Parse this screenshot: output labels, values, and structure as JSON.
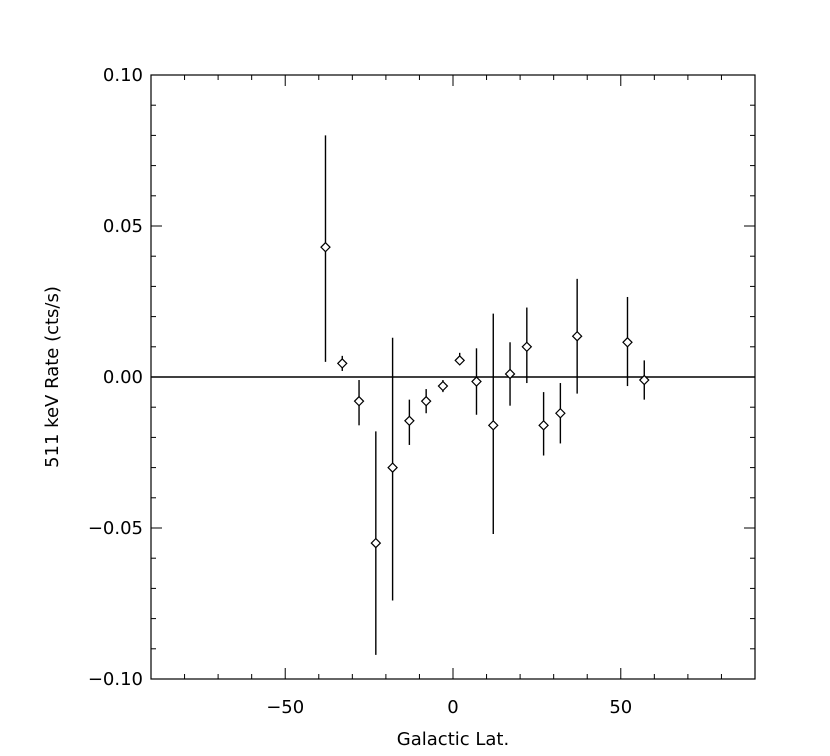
{
  "chart_data": {
    "type": "scatter",
    "title": "",
    "xlabel": "Galactic Lat.",
    "ylabel": "511 keV Rate (cts/s)",
    "xlim": [
      -90,
      90
    ],
    "ylim": [
      -0.1,
      0.1
    ],
    "x_ticks": [
      {
        "value": -50,
        "label": "−50"
      },
      {
        "value": 0,
        "label": "0"
      },
      {
        "value": 50,
        "label": "50"
      }
    ],
    "y_ticks": [
      {
        "value": 0.1,
        "label": "0.10"
      },
      {
        "value": 0.05,
        "label": "0.05"
      },
      {
        "value": 0.0,
        "label": "0.00"
      },
      {
        "value": -0.05,
        "label": "−0.05"
      },
      {
        "value": -0.1,
        "label": "−0.10"
      }
    ],
    "reference_line_y": 0,
    "marker": "diamond",
    "color": "#000000",
    "points": [
      {
        "x": -38,
        "y": 0.043,
        "err_low": 0.005,
        "err_high": 0.08
      },
      {
        "x": -33,
        "y": 0.0045,
        "err_low": 0.002,
        "err_high": 0.007
      },
      {
        "x": -28,
        "y": -0.008,
        "err_low": -0.016,
        "err_high": -0.001
      },
      {
        "x": -23,
        "y": -0.055,
        "err_low": -0.092,
        "err_high": -0.018
      },
      {
        "x": -18,
        "y": -0.03,
        "err_low": -0.074,
        "err_high": 0.013
      },
      {
        "x": -13,
        "y": -0.0145,
        "err_low": -0.0225,
        "err_high": -0.0075
      },
      {
        "x": -8,
        "y": -0.008,
        "err_low": -0.012,
        "err_high": -0.004
      },
      {
        "x": -3,
        "y": -0.003,
        "err_low": -0.005,
        "err_high": -0.001
      },
      {
        "x": 2,
        "y": 0.0055,
        "err_low": 0.004,
        "err_high": 0.008
      },
      {
        "x": 7,
        "y": -0.0015,
        "err_low": -0.0125,
        "err_high": 0.0095
      },
      {
        "x": 12,
        "y": -0.016,
        "err_low": -0.052,
        "err_high": 0.021
      },
      {
        "x": 17,
        "y": 0.001,
        "err_low": -0.0095,
        "err_high": 0.0115
      },
      {
        "x": 22,
        "y": 0.01,
        "err_low": -0.002,
        "err_high": 0.023
      },
      {
        "x": 27,
        "y": -0.016,
        "err_low": -0.026,
        "err_high": -0.005
      },
      {
        "x": 32,
        "y": -0.012,
        "err_low": -0.022,
        "err_high": -0.002
      },
      {
        "x": 37,
        "y": 0.0135,
        "err_low": -0.0055,
        "err_high": 0.0325
      },
      {
        "x": 52,
        "y": 0.0115,
        "err_low": -0.003,
        "err_high": 0.0265
      },
      {
        "x": 57,
        "y": -0.001,
        "err_low": -0.0075,
        "err_high": 0.0055
      }
    ]
  }
}
